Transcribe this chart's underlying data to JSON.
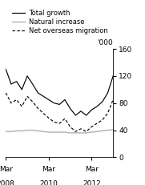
{
  "ylabel": "'000",
  "ylim": [
    0,
    160
  ],
  "yticks": [
    0,
    40,
    80,
    120,
    160
  ],
  "xlim": [
    0,
    20
  ],
  "xtick_positions": [
    0,
    8,
    16
  ],
  "xtick_labels_top": [
    "Mar",
    "Mar",
    "Mar"
  ],
  "xtick_labels_bottom": [
    "2008",
    "2010",
    "2012"
  ],
  "quarters": [
    0,
    1,
    2,
    3,
    4,
    5,
    6,
    7,
    8,
    9,
    10,
    11,
    12,
    13,
    14,
    15,
    16,
    17,
    18,
    19,
    20
  ],
  "total_growth": [
    130,
    108,
    112,
    100,
    120,
    108,
    95,
    90,
    85,
    80,
    78,
    85,
    72,
    62,
    68,
    62,
    70,
    75,
    82,
    95,
    120
  ],
  "natural_increase": [
    38,
    38,
    39,
    39,
    40,
    40,
    39,
    38,
    37,
    37,
    37,
    37,
    36,
    36,
    36,
    36,
    37,
    38,
    39,
    40,
    41
  ],
  "net_overseas_migration": [
    95,
    80,
    85,
    75,
    90,
    82,
    72,
    65,
    58,
    52,
    50,
    57,
    45,
    38,
    42,
    38,
    45,
    50,
    55,
    65,
    85
  ],
  "color_total": "#000000",
  "color_natural": "#b0b0b0",
  "color_net": "#000000",
  "legend_entries": [
    "Total growth",
    "Natural increase",
    "Net overseas migration"
  ],
  "background_color": "#ffffff"
}
